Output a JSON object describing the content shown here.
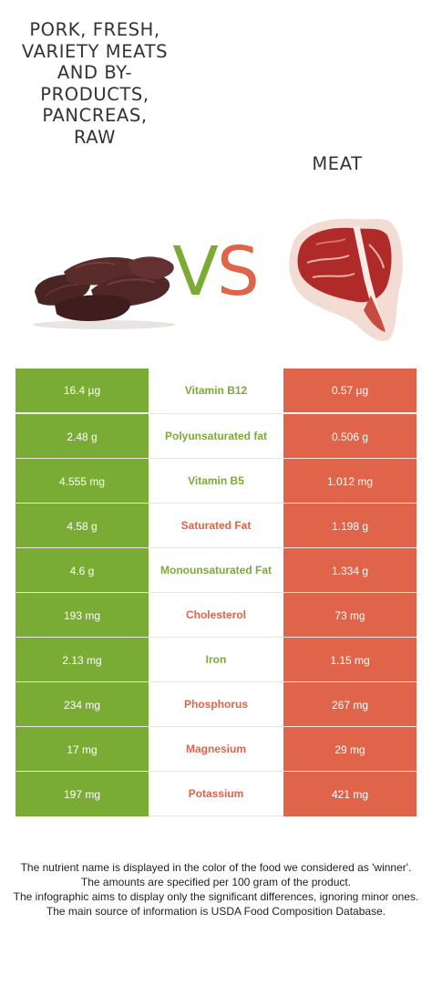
{
  "header": {
    "left_food": "Pork, fresh, variety meats and by-products, pancreas, raw",
    "right_food": "Meat",
    "vs_v": "V",
    "vs_s": "S"
  },
  "colors": {
    "winner_left": "#7aab34",
    "winner_right": "#e0644a"
  },
  "nutrients": [
    {
      "name": "Vitamin B12",
      "left": "16.4 µg",
      "right": "0.57 µg",
      "winner": "left"
    },
    {
      "name": "Polyunsaturated fat",
      "left": "2.48 g",
      "right": "0.506 g",
      "winner": "left"
    },
    {
      "name": "Vitamin B5",
      "left": "4.555 mg",
      "right": "1.012 mg",
      "winner": "left"
    },
    {
      "name": "Saturated Fat",
      "left": "4.58 g",
      "right": "1.198 g",
      "winner": "right"
    },
    {
      "name": "Monounsaturated Fat",
      "left": "4.6 g",
      "right": "1.334 g",
      "winner": "left"
    },
    {
      "name": "Cholesterol",
      "left": "193 mg",
      "right": "73 mg",
      "winner": "right"
    },
    {
      "name": "Iron",
      "left": "2.13 mg",
      "right": "1.15 mg",
      "winner": "left"
    },
    {
      "name": "Phosphorus",
      "left": "234 mg",
      "right": "267 mg",
      "winner": "right"
    },
    {
      "name": "Magnesium",
      "left": "17 mg",
      "right": "29 mg",
      "winner": "right"
    },
    {
      "name": "Potassium",
      "left": "197 mg",
      "right": "421 mg",
      "winner": "right"
    }
  ],
  "footer": {
    "line1": "The nutrient name is displayed in the color of the food we considered as 'winner'.",
    "line2": "The amounts are specified per 100 gram of the product.",
    "line3": "The infographic aims to display only the significant differences, ignoring minor ones.",
    "line4": "The main source of information is USDA Food Composition Database."
  },
  "images": {
    "left": "pancreas-image",
    "right": "t-bone-steak-image"
  }
}
